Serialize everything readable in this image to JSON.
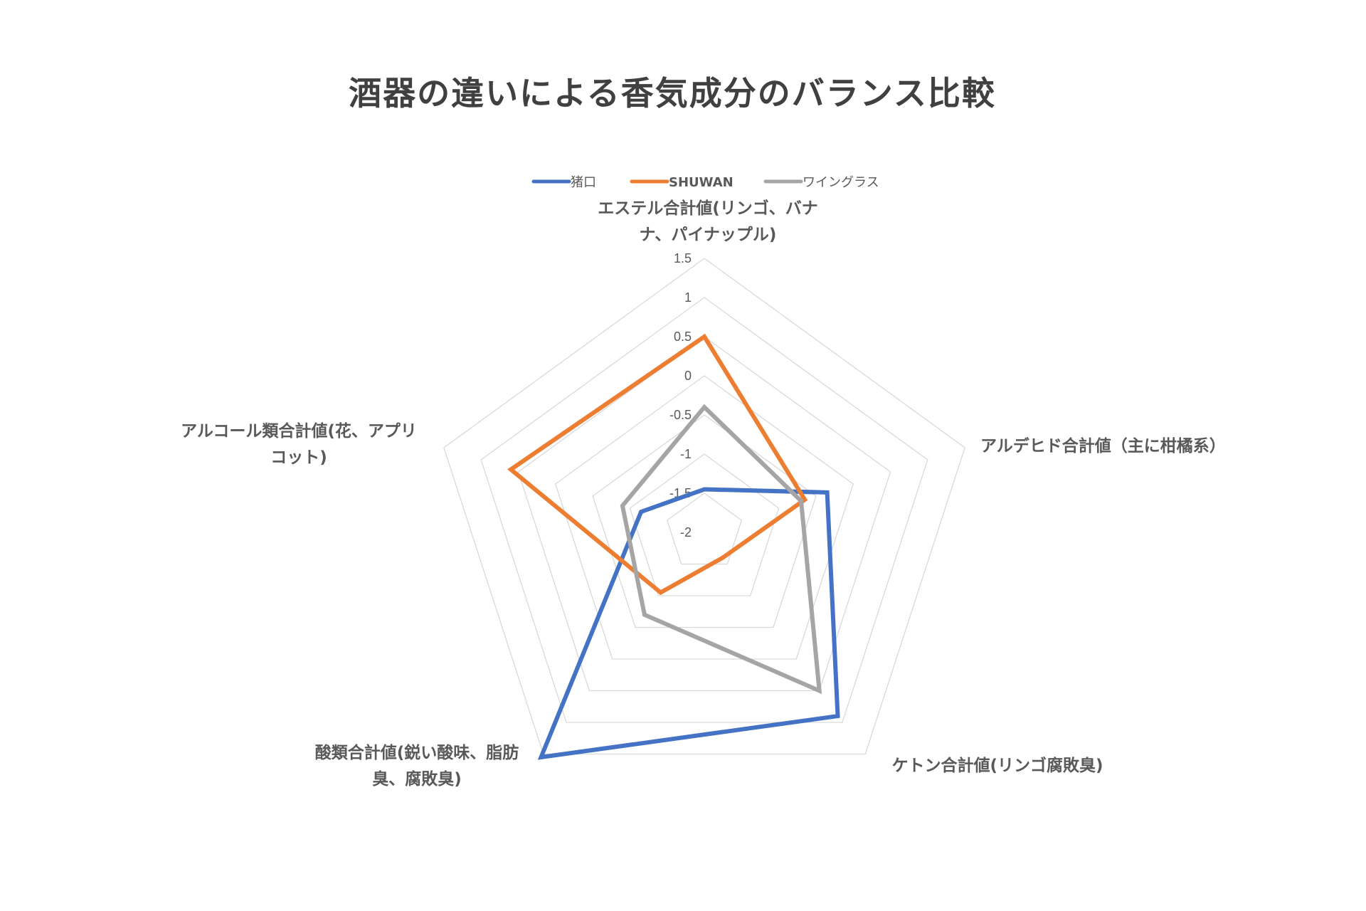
{
  "chart_data": {
    "type": "radar",
    "title": "酒器の違いによる香気成分のバランス比較",
    "axes": [
      [
        "エステル合計値(リンゴ、バナ",
        "ナ、パイナップル)"
      ],
      [
        "アルデヒド合計値（主に柑橘系）"
      ],
      [
        "ケトン合計値(リンゴ腐敗臭)"
      ],
      [
        "酸類合計値(鋭い酸味、脂肪",
        "臭、腐敗臭)"
      ],
      [
        "アルコール類合計値(花、アプリ",
        "コット)"
      ]
    ],
    "range": [
      -2,
      1.5
    ],
    "ticks": [
      "-2",
      "-1.5",
      "-1",
      "-0.5",
      "0",
      "0.5",
      "1",
      "1.5"
    ],
    "grid": true,
    "legend_position": "top",
    "series": [
      {
        "name": "猪口",
        "color": "#4472C4",
        "values": [
          -1.45,
          -0.35,
          0.9,
          1.55,
          -1.15
        ]
      },
      {
        "name": "SHUWAN",
        "color": "#ED7D31",
        "values": [
          0.5,
          -0.65,
          -1.6,
          -1.05,
          0.6
        ]
      },
      {
        "name": "ワイングラス",
        "color": "#A5A5A5",
        "values": [
          -0.4,
          -0.7,
          0.5,
          -0.7,
          -0.9
        ]
      }
    ]
  }
}
